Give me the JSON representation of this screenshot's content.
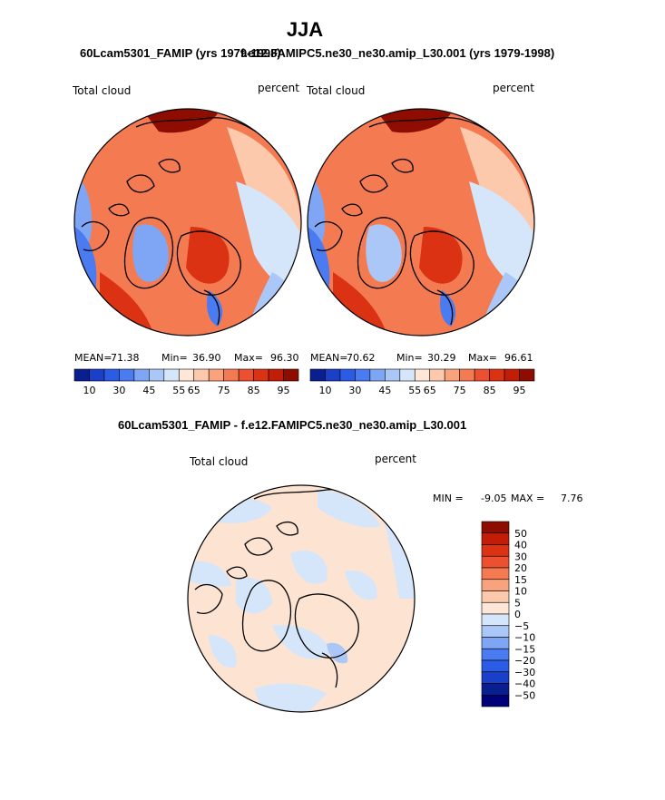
{
  "chart_data": [
    {
      "type": "polar_map",
      "title": "JJA",
      "subtitle": "60Lcam5301_FAMIP (yrs 1979-1998)",
      "left_label": "Total cloud",
      "right_label": "percent",
      "stats": {
        "mean_label": "MEAN=",
        "mean": "71.38",
        "min_label": "Min=",
        "min": "36.90",
        "max_label": "Max=",
        "max": "96.30"
      },
      "colorbar": {
        "levels": [
          "10",
          "30",
          "45",
          "55",
          "65",
          "75",
          "85",
          "95"
        ],
        "colors": [
          "#0a1f8f",
          "#1a3fc8",
          "#2a5ce6",
          "#4a7bf0",
          "#7fa6f4",
          "#aac7f7",
          "#d6e6fa",
          "#ffe6d6",
          "#fcc9ad",
          "#f9a27c",
          "#f47a52",
          "#ec5030",
          "#dc3214",
          "#c21d06",
          "#8e0d00"
        ]
      }
    },
    {
      "type": "polar_map",
      "subtitle": "f.e12.FAMIPC5.ne30_ne30.amip_L30.001 (yrs 1979-1998)",
      "left_label": "Total cloud",
      "right_label": "percent",
      "stats": {
        "mean_label": "MEAN=",
        "mean": "70.62",
        "min_label": "Min=",
        "min": "30.29",
        "max_label": "Max=",
        "max": "96.61"
      },
      "colorbar": {
        "levels": [
          "10",
          "30",
          "45",
          "55",
          "65",
          "75",
          "85",
          "95"
        ],
        "colors": [
          "#0a1f8f",
          "#1a3fc8",
          "#2a5ce6",
          "#4a7bf0",
          "#7fa6f4",
          "#aac7f7",
          "#d6e6fa",
          "#ffe6d6",
          "#fcc9ad",
          "#f9a27c",
          "#f47a52",
          "#ec5030",
          "#dc3214",
          "#c21d06",
          "#8e0d00"
        ]
      }
    },
    {
      "type": "polar_map",
      "subtitle": "60Lcam5301_FAMIP - f.e12.FAMIPC5.ne30_ne30.amip_L30.001",
      "left_label": "Total cloud",
      "right_label": "percent",
      "stats": {
        "min_label": "MIN =",
        "min": "-9.05",
        "max_label": "MAX =",
        "max": "7.76"
      },
      "colorbar": {
        "levels": [
          "50",
          "40",
          "30",
          "20",
          "15",
          "10",
          "5",
          "0",
          "−5",
          "−10",
          "−15",
          "−20",
          "−30",
          "−40",
          "−50"
        ],
        "colors": [
          "#8e0d00",
          "#c21d06",
          "#dc3214",
          "#ec5030",
          "#f47a52",
          "#f9a27c",
          "#fcc9ad",
          "#ffe6d6",
          "#d6e6fa",
          "#aac7f7",
          "#7fa6f4",
          "#4a7bf0",
          "#2a5ce6",
          "#1a3fc8",
          "#0a1f8f",
          "#00007a"
        ]
      }
    }
  ],
  "colors": {
    "ocean_mid": "#fde3d2",
    "pale_blue": "#d6e6fa",
    "red_deep": "#8e0d00",
    "coast": "#000000"
  }
}
